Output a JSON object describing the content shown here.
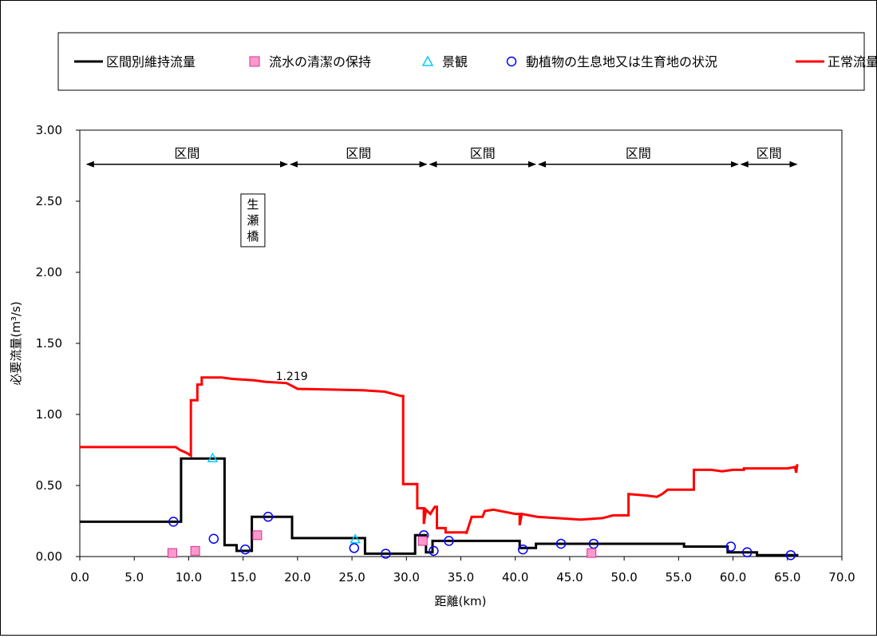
{
  "chart_data": {
    "type": "line",
    "xlabel": "距離(km)",
    "ylabel": "必要流量(m³/s)",
    "xlim": [
      0,
      70
    ],
    "ylim": [
      0,
      3
    ],
    "xticks": [
      "0.0",
      "5.0",
      "10.0",
      "15.0",
      "20.0",
      "25.0",
      "30.0",
      "35.0",
      "40.0",
      "45.0",
      "50.0",
      "55.0",
      "60.0",
      "65.0",
      "70.0"
    ],
    "yticks": [
      "0.00",
      "0.50",
      "1.00",
      "1.50",
      "2.00",
      "2.50",
      "3.00"
    ],
    "grid": false,
    "legend_position": "top",
    "legend": [
      {
        "label": "区間別維持流量",
        "kind": "line",
        "color": "#000000"
      },
      {
        "label": "流水の清潔の保持",
        "kind": "square",
        "color": "#ff99cc"
      },
      {
        "label": "景観",
        "kind": "triangle",
        "color": "#00ccff"
      },
      {
        "label": "動植物の生息地又は生育地の状況",
        "kind": "circle",
        "color": "#0000ff"
      },
      {
        "label": "正常流量",
        "kind": "line",
        "color": "#ff0000"
      }
    ],
    "series": [
      {
        "name": "正常流量",
        "type": "step",
        "color": "#ff0000",
        "points": [
          [
            0,
            0.77
          ],
          [
            8.8,
            0.77
          ],
          [
            9.2,
            0.75
          ],
          [
            9.8,
            0.73
          ],
          [
            10.2,
            0.71
          ],
          [
            10.2,
            1.1
          ],
          [
            10.8,
            1.1
          ],
          [
            10.8,
            1.21
          ],
          [
            11.2,
            1.21
          ],
          [
            11.2,
            1.26
          ],
          [
            13,
            1.26
          ],
          [
            14,
            1.25
          ],
          [
            16,
            1.24
          ],
          [
            17,
            1.23
          ],
          [
            19,
            1.22
          ],
          [
            20,
            1.18
          ],
          [
            26,
            1.17
          ],
          [
            28,
            1.16
          ],
          [
            29.5,
            1.13
          ],
          [
            29.7,
            1.13
          ],
          [
            29.7,
            0.51
          ],
          [
            31,
            0.51
          ],
          [
            31,
            0.34
          ],
          [
            31.6,
            0.34
          ],
          [
            31.6,
            0.23
          ],
          [
            31.8,
            0.33
          ],
          [
            32.2,
            0.3
          ],
          [
            32.6,
            0.35
          ],
          [
            32.8,
            0.35
          ],
          [
            32.8,
            0.2
          ],
          [
            33.6,
            0.2
          ],
          [
            33.6,
            0.17
          ],
          [
            35.5,
            0.17
          ],
          [
            35.5,
            0.16
          ],
          [
            36,
            0.28
          ],
          [
            37,
            0.28
          ],
          [
            37.2,
            0.32
          ],
          [
            38,
            0.33
          ],
          [
            40,
            0.3
          ],
          [
            40.4,
            0.3
          ],
          [
            40.4,
            0.22
          ],
          [
            40.6,
            0.3
          ],
          [
            42,
            0.28
          ],
          [
            46,
            0.26
          ],
          [
            48,
            0.27
          ],
          [
            49,
            0.29
          ],
          [
            50,
            0.29
          ],
          [
            50.4,
            0.29
          ],
          [
            50.4,
            0.44
          ],
          [
            52,
            0.43
          ],
          [
            53,
            0.42
          ],
          [
            53.5,
            0.44
          ],
          [
            54,
            0.47
          ],
          [
            56.4,
            0.47
          ],
          [
            56.4,
            0.61
          ],
          [
            58,
            0.61
          ],
          [
            59,
            0.6
          ],
          [
            60,
            0.61
          ],
          [
            61,
            0.61
          ],
          [
            61,
            0.62
          ],
          [
            62,
            0.62
          ],
          [
            65,
            0.62
          ],
          [
            65.7,
            0.63
          ],
          [
            65.8,
            0.59
          ],
          [
            65.9,
            0.65
          ]
        ]
      },
      {
        "name": "区間別維持流量",
        "type": "step",
        "color": "#000000",
        "points": [
          [
            0,
            0.245
          ],
          [
            9.3,
            0.245
          ],
          [
            9.3,
            0.69
          ],
          [
            13.3,
            0.69
          ],
          [
            13.3,
            0.08
          ],
          [
            14.4,
            0.08
          ],
          [
            14.4,
            0.04
          ],
          [
            15.8,
            0.04
          ],
          [
            15.8,
            0.28
          ],
          [
            19.5,
            0.28
          ],
          [
            19.5,
            0.13
          ],
          [
            26.2,
            0.13
          ],
          [
            26.2,
            0.02
          ],
          [
            30.8,
            0.02
          ],
          [
            30.8,
            0.15
          ],
          [
            31.8,
            0.15
          ],
          [
            31.8,
            0.03
          ],
          [
            32.4,
            0.03
          ],
          [
            32.4,
            0.11
          ],
          [
            40.4,
            0.11
          ],
          [
            40.4,
            0.06
          ],
          [
            41.9,
            0.06
          ],
          [
            41.9,
            0.09
          ],
          [
            55.5,
            0.09
          ],
          [
            55.5,
            0.07
          ],
          [
            59.5,
            0.07
          ],
          [
            59.5,
            0.03
          ],
          [
            62.2,
            0.03
          ],
          [
            62.2,
            0.01
          ],
          [
            66,
            0.01
          ]
        ]
      }
    ],
    "markers": {
      "squares": [
        [
          8.5,
          0.025
        ],
        [
          10.6,
          0.04
        ],
        [
          16.3,
          0.15
        ],
        [
          31.5,
          0.11
        ],
        [
          47.0,
          0.025
        ]
      ],
      "triangles": [
        [
          12.2,
          0.69
        ],
        [
          25.3,
          0.12
        ]
      ],
      "circles": [
        [
          8.6,
          0.245
        ],
        [
          12.3,
          0.125
        ],
        [
          15.2,
          0.05
        ],
        [
          17.3,
          0.28
        ],
        [
          25.2,
          0.06
        ],
        [
          28.1,
          0.02
        ],
        [
          31.6,
          0.15
        ],
        [
          32.5,
          0.04
        ],
        [
          33.9,
          0.11
        ],
        [
          40.7,
          0.05
        ],
        [
          44.2,
          0.09
        ],
        [
          47.2,
          0.09
        ],
        [
          59.8,
          0.07
        ],
        [
          61.3,
          0.03
        ],
        [
          65.3,
          0.01
        ]
      ]
    },
    "annotations": {
      "value_label": {
        "text": "1.219",
        "x": 18.0,
        "y": 1.219
      },
      "station_label": {
        "text": "生瀬橋",
        "x": 15.9,
        "y": 2.18
      },
      "sections": [
        {
          "label": "区間",
          "from": 0.5,
          "to": 19.2
        },
        {
          "label": "区間",
          "from": 19.2,
          "to": 32.0
        },
        {
          "label": "区間",
          "from": 32.0,
          "to": 42.0
        },
        {
          "label": "区間",
          "from": 42.0,
          "to": 60.6
        },
        {
          "label": "区間",
          "from": 60.6,
          "to": 66.0
        }
      ],
      "section_arrow_y": 2.76
    }
  }
}
